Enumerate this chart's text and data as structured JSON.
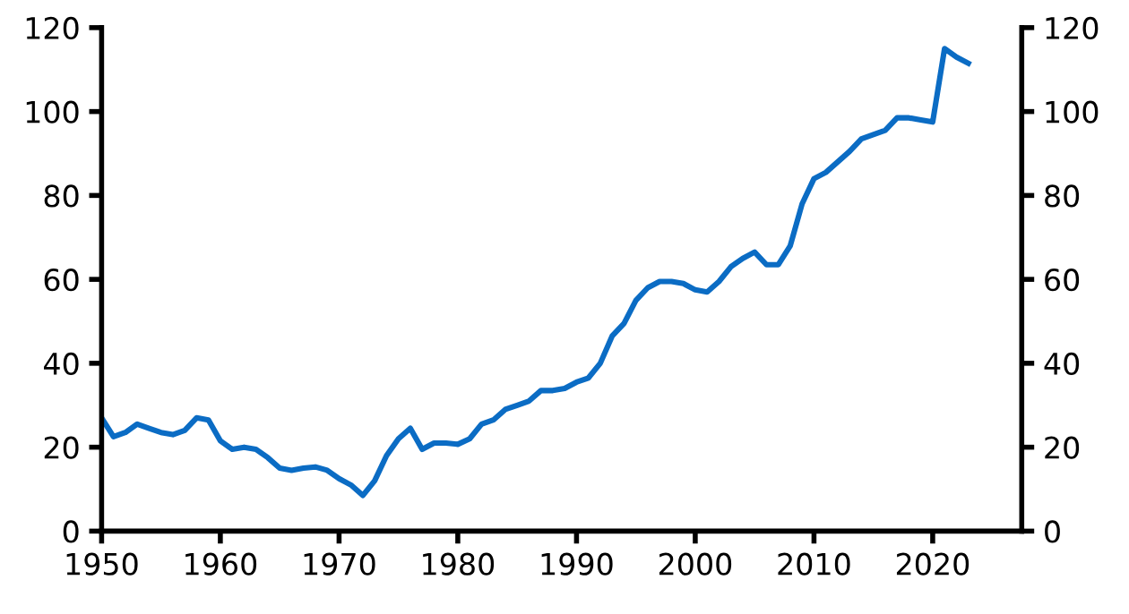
{
  "chart_data": {
    "type": "line",
    "x": [
      1950,
      1951,
      1952,
      1953,
      1954,
      1955,
      1956,
      1957,
      1958,
      1959,
      1960,
      1961,
      1962,
      1963,
      1964,
      1965,
      1966,
      1967,
      1968,
      1969,
      1970,
      1971,
      1972,
      1973,
      1974,
      1975,
      1976,
      1977,
      1978,
      1979,
      1980,
      1981,
      1982,
      1983,
      1984,
      1985,
      1986,
      1987,
      1988,
      1989,
      1990,
      1991,
      1992,
      1993,
      1994,
      1995,
      1996,
      1997,
      1998,
      1999,
      2000,
      2001,
      2002,
      2003,
      2004,
      2005,
      2006,
      2007,
      2008,
      2009,
      2010,
      2011,
      2012,
      2013,
      2014,
      2015,
      2016,
      2017,
      2018,
      2019,
      2020,
      2021,
      2022,
      2023
    ],
    "series": [
      {
        "color": "#0b6cc4",
        "values": [
          27,
          22.5,
          23.5,
          25.5,
          24.5,
          23.5,
          23,
          24,
          27,
          26.5,
          21.5,
          19.5,
          20,
          19.5,
          17.5,
          15,
          14.5,
          15,
          15.3,
          14.5,
          12.5,
          11,
          8.5,
          12,
          18,
          22,
          24.5,
          19.5,
          21,
          21,
          20.7,
          22,
          25.5,
          26.5,
          29,
          30,
          31,
          33.5,
          33.5,
          34,
          35.5,
          36.5,
          40,
          46.5,
          49.5,
          55,
          58,
          59.5,
          59.5,
          59,
          57.5,
          57,
          59.5,
          63,
          65,
          66.5,
          63.5,
          63.5,
          68,
          78,
          84,
          85.5,
          88,
          90.5,
          93.5,
          94.5,
          95.5,
          98.5,
          98.5,
          98,
          97.5,
          115,
          113,
          111.5
        ]
      }
    ],
    "xlim": [
      1950,
      2027.5
    ],
    "xticks": [
      1950,
      1960,
      1970,
      1980,
      1990,
      2000,
      2010,
      2020
    ],
    "ylim": [
      0,
      120
    ],
    "yticks": [
      0,
      20,
      40,
      60,
      80,
      100,
      120
    ],
    "y2lim": [
      0,
      120
    ],
    "y2ticks": [
      0,
      20,
      40,
      60,
      80,
      100,
      120
    ],
    "grid": false,
    "legend": false,
    "marker": "none",
    "line_style": "solid"
  }
}
